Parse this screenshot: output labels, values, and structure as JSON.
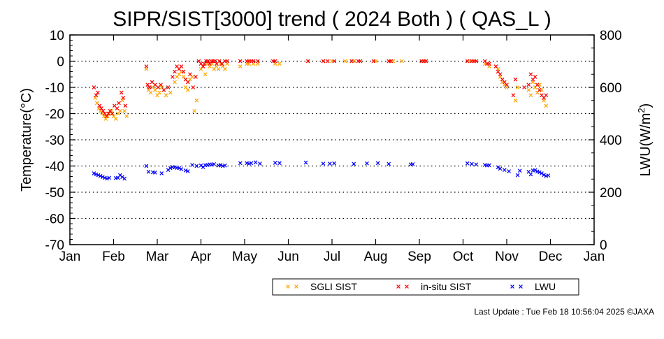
{
  "chart_data": {
    "type": "scatter",
    "title": "SIPR/SIST[3000] trend ( 2024 Both ) ( QAS_L )",
    "ylabel": "Temperature(°C)",
    "y2label_main": "LWU(W/m",
    "y2label_sup": "2",
    "y2label_end": ")",
    "ylim": [
      -70,
      10
    ],
    "yticks": [
      "10",
      "0",
      "-10",
      "-20",
      "-30",
      "-40",
      "-50",
      "-60",
      "-70"
    ],
    "y2lim": [
      0,
      800
    ],
    "y2ticks": [
      "800",
      "600",
      "400",
      "200",
      "0"
    ],
    "xlim": [
      0,
      12
    ],
    "xticks": [
      "Jan",
      "Feb",
      "Mar",
      "Apr",
      "May",
      "Jun",
      "Jul",
      "Aug",
      "Sep",
      "Oct",
      "Nov",
      "Dec",
      "Jan"
    ],
    "grid": "dotted horizontal",
    "legend_position": "bottom",
    "footer": "Last Update : Tue Feb 18 10:56:04 2025  ©JAXA",
    "series": [
      {
        "name": "SGLI SIST",
        "color": "#ffa500",
        "axis": "left",
        "points": [
          [
            0.58,
            -14
          ],
          [
            0.62,
            -16
          ],
          [
            0.66,
            -18
          ],
          [
            0.7,
            -19
          ],
          [
            0.74,
            -20
          ],
          [
            0.78,
            -21
          ],
          [
            0.82,
            -22
          ],
          [
            0.86,
            -21
          ],
          [
            0.9,
            -20
          ],
          [
            0.95,
            -19
          ],
          [
            1.0,
            -21
          ],
          [
            1.05,
            -22
          ],
          [
            1.1,
            -20
          ],
          [
            1.15,
            -19
          ],
          [
            1.2,
            -15
          ],
          [
            1.25,
            -19
          ],
          [
            1.3,
            -21
          ],
          [
            1.75,
            -3
          ],
          [
            1.8,
            -11
          ],
          [
            1.85,
            -12
          ],
          [
            1.9,
            -10
          ],
          [
            1.95,
            -11
          ],
          [
            2.0,
            -13
          ],
          [
            2.05,
            -12
          ],
          [
            2.1,
            -10
          ],
          [
            2.2,
            -13
          ],
          [
            2.3,
            -12
          ],
          [
            2.4,
            -8
          ],
          [
            2.45,
            -6
          ],
          [
            2.5,
            -5
          ],
          [
            2.55,
            -4
          ],
          [
            2.6,
            -6
          ],
          [
            2.65,
            -10
          ],
          [
            2.7,
            -11
          ],
          [
            2.75,
            -7
          ],
          [
            2.8,
            -6
          ],
          [
            2.85,
            -19
          ],
          [
            2.9,
            -15
          ],
          [
            3.0,
            -3
          ],
          [
            3.05,
            -2
          ],
          [
            3.1,
            -5
          ],
          [
            3.15,
            -1
          ],
          [
            3.2,
            -2
          ],
          [
            3.25,
            -1
          ],
          [
            3.3,
            -3
          ],
          [
            3.35,
            -2
          ],
          [
            3.4,
            -3
          ],
          [
            3.45,
            -1
          ],
          [
            3.5,
            -2
          ],
          [
            3.55,
            -3
          ],
          [
            3.6,
            -1
          ],
          [
            3.9,
            -2
          ],
          [
            4.05,
            -1
          ],
          [
            4.1,
            -1
          ],
          [
            4.2,
            -1
          ],
          [
            4.3,
            -1
          ],
          [
            4.7,
            -1
          ],
          [
            4.8,
            -1
          ],
          [
            5.45,
            0
          ],
          [
            5.8,
            0
          ],
          [
            6.0,
            0
          ],
          [
            6.3,
            0
          ],
          [
            6.5,
            0
          ],
          [
            6.65,
            0
          ],
          [
            7.0,
            0
          ],
          [
            7.3,
            0
          ],
          [
            7.4,
            0
          ],
          [
            7.6,
            0
          ],
          [
            8.1,
            0
          ],
          [
            8.15,
            0
          ],
          [
            9.15,
            0
          ],
          [
            9.25,
            0
          ],
          [
            9.3,
            0
          ],
          [
            9.5,
            -1
          ],
          [
            9.55,
            -1
          ],
          [
            9.6,
            -2
          ],
          [
            9.8,
            -3
          ],
          [
            9.85,
            -6
          ],
          [
            9.9,
            -8
          ],
          [
            9.95,
            -9
          ],
          [
            10.0,
            -10
          ],
          [
            10.2,
            -15
          ],
          [
            10.25,
            -10
          ],
          [
            10.5,
            -11
          ],
          [
            10.55,
            -13
          ],
          [
            10.6,
            -8
          ],
          [
            10.65,
            -10
          ],
          [
            10.7,
            -12
          ],
          [
            10.75,
            -9
          ],
          [
            10.8,
            -11
          ],
          [
            10.85,
            -15
          ],
          [
            10.9,
            -17
          ]
        ]
      },
      {
        "name": "in-situ SIST",
        "color": "#ff0000",
        "axis": "left",
        "points": [
          [
            0.55,
            -10
          ],
          [
            0.6,
            -13
          ],
          [
            0.64,
            -12
          ],
          [
            0.68,
            -17
          ],
          [
            0.72,
            -18
          ],
          [
            0.76,
            -19
          ],
          [
            0.8,
            -20
          ],
          [
            0.84,
            -21
          ],
          [
            0.88,
            -20
          ],
          [
            0.92,
            -19
          ],
          [
            0.97,
            -20
          ],
          [
            1.02,
            -17
          ],
          [
            1.08,
            -18
          ],
          [
            1.12,
            -16
          ],
          [
            1.18,
            -12
          ],
          [
            1.22,
            -14
          ],
          [
            1.27,
            -17
          ],
          [
            1.75,
            -2
          ],
          [
            1.78,
            -9
          ],
          [
            1.82,
            -10
          ],
          [
            1.88,
            -8
          ],
          [
            1.95,
            -9
          ],
          [
            2.02,
            -10
          ],
          [
            2.08,
            -9
          ],
          [
            2.15,
            -11
          ],
          [
            2.25,
            -10
          ],
          [
            2.35,
            -6
          ],
          [
            2.4,
            -4
          ],
          [
            2.45,
            -2
          ],
          [
            2.5,
            -3
          ],
          [
            2.55,
            -2
          ],
          [
            2.6,
            -4
          ],
          [
            2.65,
            -7
          ],
          [
            2.7,
            -8
          ],
          [
            2.75,
            -5
          ],
          [
            2.82,
            -10
          ],
          [
            2.88,
            -6
          ],
          [
            2.95,
            0
          ],
          [
            3.0,
            -1
          ],
          [
            3.05,
            -2
          ],
          [
            3.08,
            -1
          ],
          [
            3.12,
            0
          ],
          [
            3.16,
            0
          ],
          [
            3.2,
            -1
          ],
          [
            3.24,
            0
          ],
          [
            3.28,
            0
          ],
          [
            3.32,
            0
          ],
          [
            3.36,
            -1
          ],
          [
            3.42,
            0
          ],
          [
            3.48,
            -1
          ],
          [
            3.55,
            0
          ],
          [
            3.6,
            0
          ],
          [
            3.9,
            0
          ],
          [
            4.05,
            0
          ],
          [
            4.1,
            0
          ],
          [
            4.15,
            0
          ],
          [
            4.2,
            0
          ],
          [
            4.3,
            0
          ],
          [
            4.65,
            0
          ],
          [
            4.7,
            0
          ],
          [
            5.45,
            0
          ],
          [
            5.8,
            0
          ],
          [
            5.9,
            0
          ],
          [
            6.05,
            0
          ],
          [
            6.45,
            0
          ],
          [
            6.6,
            0
          ],
          [
            6.65,
            0
          ],
          [
            6.95,
            0
          ],
          [
            7.3,
            0
          ],
          [
            7.35,
            0
          ],
          [
            8.05,
            0
          ],
          [
            8.1,
            0
          ],
          [
            8.15,
            0
          ],
          [
            9.1,
            0
          ],
          [
            9.2,
            0
          ],
          [
            9.25,
            0
          ],
          [
            9.3,
            0
          ],
          [
            9.5,
            0
          ],
          [
            9.55,
            -1
          ],
          [
            9.6,
            -1
          ],
          [
            9.75,
            -2
          ],
          [
            9.8,
            -4
          ],
          [
            9.85,
            -5
          ],
          [
            9.9,
            -7
          ],
          [
            9.95,
            -8
          ],
          [
            10.0,
            -9
          ],
          [
            10.15,
            -13
          ],
          [
            10.2,
            -7
          ],
          [
            10.4,
            -10
          ],
          [
            10.5,
            -9
          ],
          [
            10.55,
            -5
          ],
          [
            10.6,
            -7
          ],
          [
            10.65,
            -6
          ],
          [
            10.7,
            -9
          ],
          [
            10.75,
            -11
          ],
          [
            10.8,
            -13
          ],
          [
            10.85,
            -14
          ],
          [
            10.9,
            -13
          ]
        ]
      },
      {
        "name": "LWU",
        "color": "#0000ff",
        "axis": "right",
        "points": [
          [
            0.55,
            272
          ],
          [
            0.6,
            268
          ],
          [
            0.65,
            265
          ],
          [
            0.7,
            262
          ],
          [
            0.75,
            258
          ],
          [
            0.8,
            255
          ],
          [
            0.85,
            252
          ],
          [
            0.9,
            255
          ],
          [
            1.05,
            254
          ],
          [
            1.1,
            255
          ],
          [
            1.15,
            265
          ],
          [
            1.2,
            258
          ],
          [
            1.25,
            252
          ],
          [
            1.75,
            300
          ],
          [
            1.8,
            278
          ],
          [
            1.9,
            276
          ],
          [
            1.95,
            275
          ],
          [
            2.1,
            272
          ],
          [
            2.25,
            285
          ],
          [
            2.3,
            292
          ],
          [
            2.35,
            296
          ],
          [
            2.4,
            295
          ],
          [
            2.45,
            293
          ],
          [
            2.5,
            292
          ],
          [
            2.55,
            288
          ],
          [
            2.65,
            283
          ],
          [
            2.7,
            280
          ],
          [
            2.8,
            304
          ],
          [
            2.9,
            300
          ],
          [
            3.0,
            302
          ],
          [
            3.05,
            296
          ],
          [
            3.1,
            303
          ],
          [
            3.15,
            304
          ],
          [
            3.2,
            306
          ],
          [
            3.25,
            305
          ],
          [
            3.3,
            307
          ],
          [
            3.4,
            302
          ],
          [
            3.45,
            304
          ],
          [
            3.5,
            300
          ],
          [
            3.55,
            302
          ],
          [
            3.9,
            311
          ],
          [
            4.05,
            311
          ],
          [
            4.1,
            309
          ],
          [
            4.15,
            311
          ],
          [
            4.25,
            314
          ],
          [
            4.35,
            309
          ],
          [
            4.7,
            312
          ],
          [
            4.8,
            311
          ],
          [
            5.4,
            313
          ],
          [
            5.8,
            309
          ],
          [
            5.95,
            309
          ],
          [
            6.05,
            310
          ],
          [
            6.5,
            308
          ],
          [
            6.8,
            310
          ],
          [
            7.05,
            311
          ],
          [
            7.3,
            308
          ],
          [
            7.8,
            306
          ],
          [
            7.85,
            307
          ],
          [
            9.1,
            310
          ],
          [
            9.2,
            308
          ],
          [
            9.3,
            306
          ],
          [
            9.5,
            304
          ],
          [
            9.55,
            302
          ],
          [
            9.6,
            303
          ],
          [
            9.8,
            295
          ],
          [
            9.85,
            290
          ],
          [
            9.95,
            285
          ],
          [
            10.05,
            280
          ],
          [
            10.25,
            265
          ],
          [
            10.3,
            282
          ],
          [
            10.5,
            278
          ],
          [
            10.55,
            268
          ],
          [
            10.6,
            283
          ],
          [
            10.65,
            284
          ],
          [
            10.7,
            279
          ],
          [
            10.75,
            276
          ],
          [
            10.8,
            272
          ],
          [
            10.85,
            266
          ],
          [
            10.9,
            262
          ],
          [
            10.95,
            264
          ]
        ]
      }
    ]
  }
}
